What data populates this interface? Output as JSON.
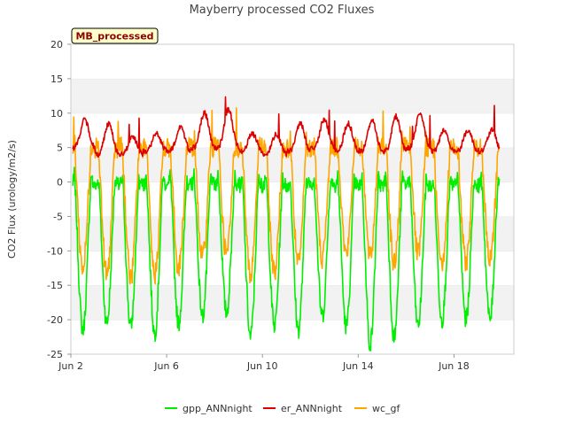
{
  "chart_data": {
    "type": "line",
    "title": "Mayberry processed CO2 Fluxes",
    "badge": "MB_processed",
    "xlabel": "",
    "ylabel": "CO2 Flux (urology/m2/s)",
    "ylim": [
      -25,
      20
    ],
    "yticks": [
      -25,
      -20,
      -15,
      -10,
      -5,
      0,
      5,
      10,
      15,
      20
    ],
    "xlim": [
      2.0,
      20.5
    ],
    "xticks": [
      {
        "value": 2,
        "label": "Jun 2"
      },
      {
        "value": 6,
        "label": "Jun 6"
      },
      {
        "value": 10,
        "label": "Jun 10"
      },
      {
        "value": 14,
        "label": "Jun 14"
      },
      {
        "value": 18,
        "label": "Jun 18"
      }
    ],
    "grid": "horizontal bands",
    "legend_position": "bottom",
    "series": [
      {
        "name": "gpp_ANNnight",
        "color": "#00ee00",
        "day_min": [
          -21.5,
          -20.5,
          -21.0,
          -22.0,
          -20.5,
          -19.5,
          -19.0,
          -22.5,
          -21.0,
          -21.5,
          -19.5,
          -21.0,
          -23.5,
          -22.5,
          -21.0,
          -20.0
        ],
        "day_max": [
          1.5,
          0.5,
          1.0,
          1.5,
          1.0,
          1.5,
          2.0,
          0.5,
          1.0,
          1.0,
          1.5,
          1.0,
          1.0,
          1.5,
          1.0,
          0.5
        ]
      },
      {
        "name": "er_ANNnight",
        "color": "#dd0000",
        "day_peak": [
          9.0,
          8.5,
          6.5,
          7.0,
          8.0,
          10.0,
          10.5,
          7.0,
          7.0,
          8.5,
          9.0,
          8.5,
          9.0,
          9.5,
          10.0,
          7.5
        ],
        "night_min": [
          5.0,
          4.0,
          4.0,
          4.5,
          4.5,
          5.0,
          5.0,
          4.5,
          4.0,
          4.5,
          5.0,
          4.5,
          4.5,
          4.5,
          5.0,
          4.5
        ]
      },
      {
        "name": "wc_gf",
        "color": "#ffa500",
        "day_min": [
          -12.5,
          -13.5,
          -14.0,
          -13.5,
          -12.5,
          -11.0,
          -10.5,
          -13.5,
          -13.0,
          -12.0,
          -11.0,
          -10.5,
          -11.0,
          -12.0,
          -10.5,
          -11.5
        ],
        "night_max": [
          8.5,
          7.5,
          6.5,
          6.5,
          7.5,
          9.0,
          9.5,
          7.0,
          6.5,
          10.5,
          9.0,
          8.5,
          9.0,
          10.0,
          10.5,
          7.0
        ]
      }
    ]
  }
}
